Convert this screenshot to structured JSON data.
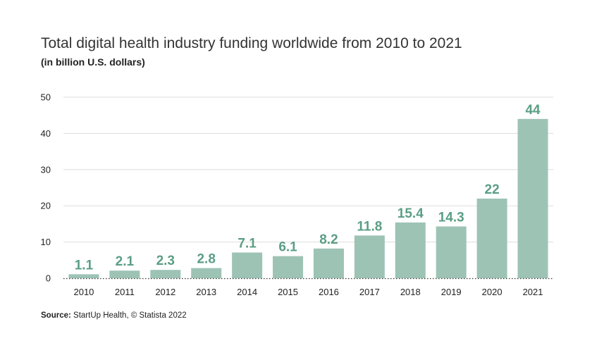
{
  "title": "Total digital health industry funding worldwide from 2010 to 2021",
  "subtitle": "(in billion U.S. dollars)",
  "source": {
    "label": "Source:",
    "text": "StartUp Health, © Statista 2022"
  },
  "colors": {
    "bar": "#9dc3b5",
    "value_label": "#5b9e85",
    "grid": "#dddddd",
    "axis": "#333333"
  },
  "chart_data": {
    "type": "bar",
    "categories": [
      "2010",
      "2011",
      "2012",
      "2013",
      "2014",
      "2015",
      "2016",
      "2017",
      "2018",
      "2019",
      "2020",
      "2021"
    ],
    "values": [
      1.1,
      2.1,
      2.3,
      2.8,
      7.1,
      6.1,
      8.2,
      11.8,
      15.4,
      14.3,
      22,
      44
    ],
    "value_labels": [
      "1.1",
      "2.1",
      "2.3",
      "2.8",
      "7.1",
      "6.1",
      "8.2",
      "11.8",
      "15.4",
      "14.3",
      "22",
      "44"
    ],
    "yticks": [
      "0",
      "10",
      "20",
      "30",
      "40",
      "50"
    ],
    "ylim": [
      0,
      50
    ],
    "grid": true,
    "title": "Total digital health industry funding worldwide from 2010 to 2021",
    "xlabel": "",
    "ylabel": ""
  }
}
